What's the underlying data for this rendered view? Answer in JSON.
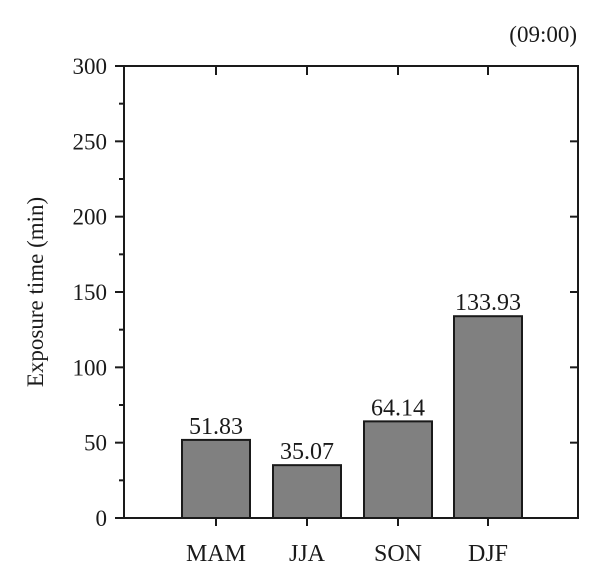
{
  "chart_data": {
    "type": "bar",
    "title": "",
    "annotation": "(09:00)",
    "xlabel": "",
    "ylabel": "Exposure time (min)",
    "categories": [
      "MAM",
      "JJA",
      "SON",
      "DJF"
    ],
    "values": [
      51.83,
      35.07,
      64.14,
      133.93
    ],
    "value_labels": [
      "51.83",
      "35.07",
      "64.14",
      "133.93"
    ],
    "ylim": [
      0,
      300
    ],
    "yticks": [
      0,
      50,
      100,
      150,
      200,
      250,
      300
    ],
    "bar_color": "#808080",
    "bar_edge_color": "#1a1a1a",
    "grid": false,
    "legend": "none"
  }
}
